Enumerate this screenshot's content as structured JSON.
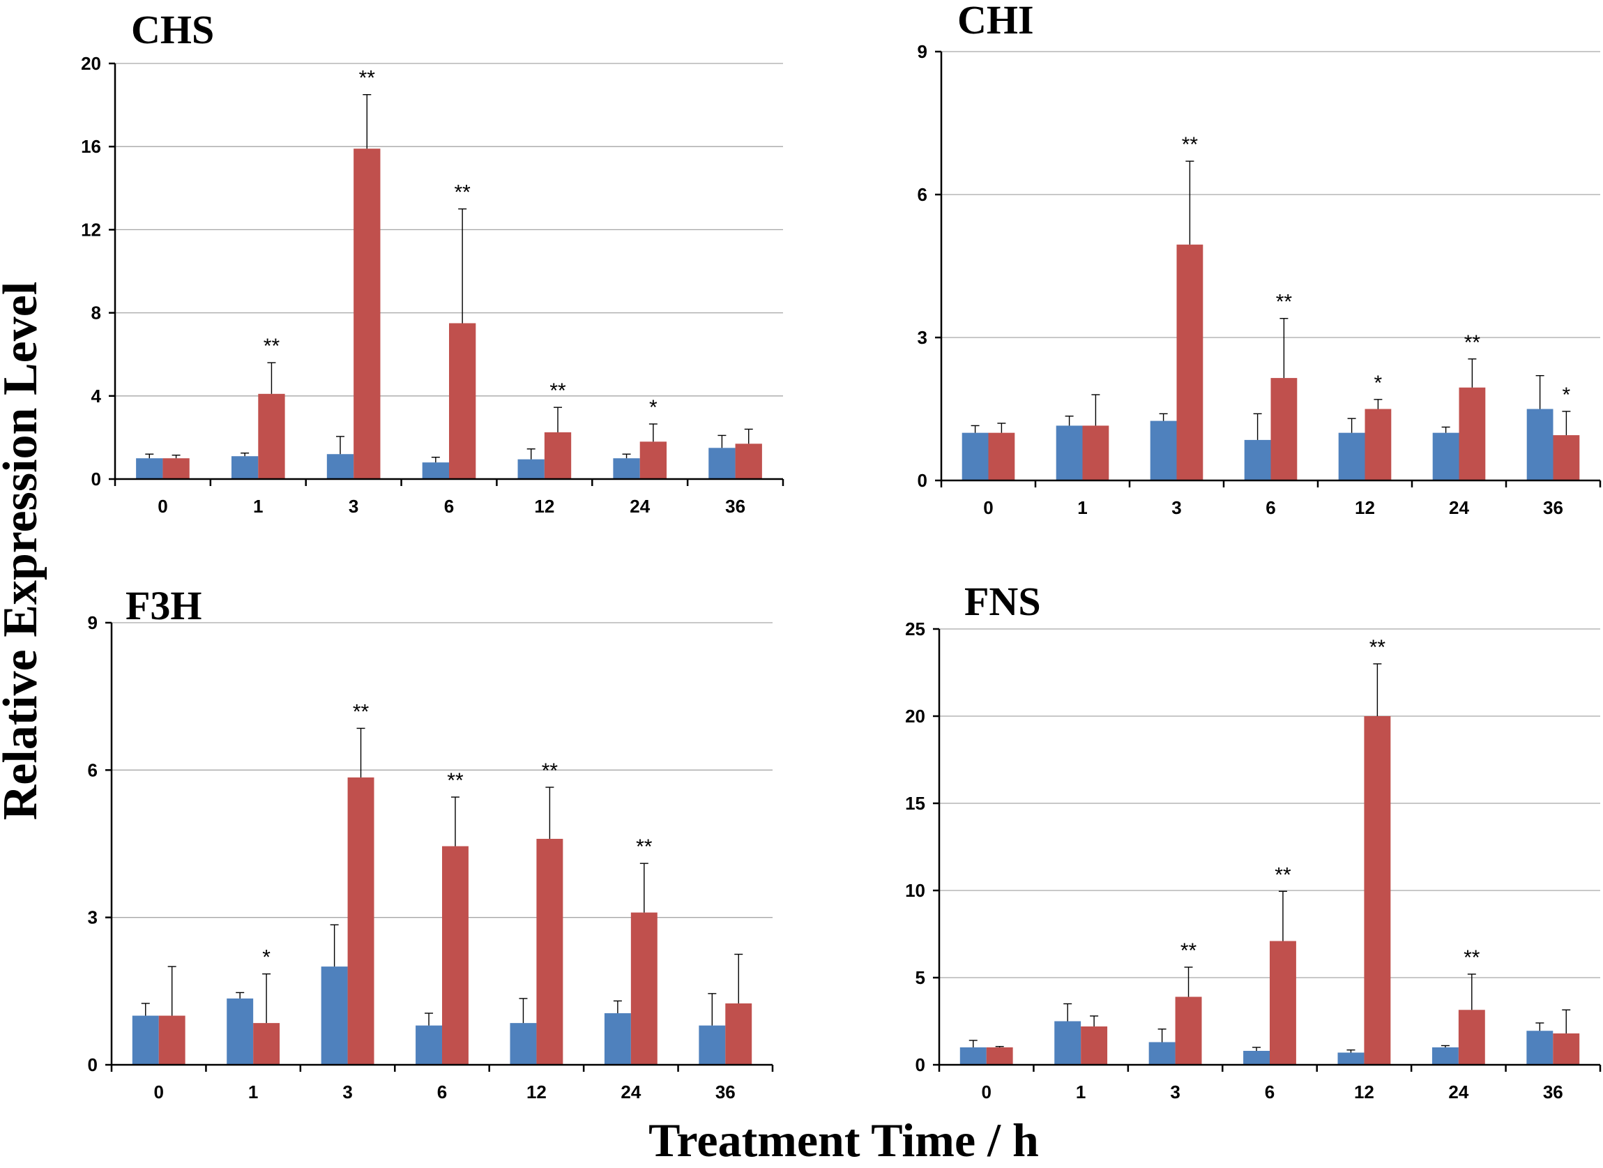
{
  "figure": {
    "ylabel": "Relative Expression Level",
    "xlabel": "Treatment Time / h"
  },
  "colors": {
    "series_a": "#4f81bd",
    "series_b": "#c0504d"
  },
  "chart_data": [
    {
      "type": "bar",
      "title": "CHS",
      "categories": [
        "0",
        "1",
        "3",
        "6",
        "12",
        "24",
        "36"
      ],
      "ylim": [
        0,
        20
      ],
      "yticks": [
        0,
        4,
        8,
        12,
        16,
        20
      ],
      "grid": true,
      "series": [
        {
          "name": "series_a",
          "values": [
            1.0,
            1.1,
            1.2,
            0.8,
            0.95,
            1.0,
            1.5
          ],
          "errors": [
            0.2,
            0.15,
            0.85,
            0.25,
            0.5,
            0.2,
            0.6
          ]
        },
        {
          "name": "series_b",
          "values": [
            1.0,
            4.1,
            15.9,
            7.5,
            2.25,
            1.8,
            1.7
          ],
          "errors": [
            0.15,
            1.5,
            2.6,
            5.5,
            1.2,
            0.85,
            0.7
          ]
        }
      ],
      "annotations": [
        "",
        "**",
        "**",
        "**",
        "**",
        "*",
        ""
      ]
    },
    {
      "type": "bar",
      "title": "CHI",
      "categories": [
        "0",
        "1",
        "3",
        "6",
        "12",
        "24",
        "36"
      ],
      "ylim": [
        0,
        9
      ],
      "yticks": [
        0,
        3,
        6,
        9
      ],
      "grid": true,
      "series": [
        {
          "name": "series_a",
          "values": [
            1.0,
            1.15,
            1.25,
            0.85,
            1.0,
            1.0,
            1.5
          ],
          "errors": [
            0.15,
            0.2,
            0.15,
            0.55,
            0.3,
            0.12,
            0.7
          ]
        },
        {
          "name": "series_b",
          "values": [
            1.0,
            1.15,
            4.95,
            2.15,
            1.5,
            1.95,
            0.95
          ],
          "errors": [
            0.2,
            0.65,
            1.75,
            1.25,
            0.2,
            0.6,
            0.5
          ]
        }
      ],
      "annotations": [
        "",
        "",
        "**",
        "**",
        "*",
        "**",
        "*"
      ]
    },
    {
      "type": "bar",
      "title": "F3H",
      "categories": [
        "0",
        "1",
        "3",
        "6",
        "12",
        "24",
        "36"
      ],
      "ylim": [
        0,
        9
      ],
      "yticks": [
        0,
        3,
        6,
        9
      ],
      "grid": true,
      "series": [
        {
          "name": "series_a",
          "values": [
            1.0,
            1.35,
            2.0,
            0.8,
            0.85,
            1.05,
            0.8
          ],
          "errors": [
            0.25,
            0.12,
            0.85,
            0.25,
            0.5,
            0.25,
            0.65
          ]
        },
        {
          "name": "series_b",
          "values": [
            1.0,
            0.85,
            5.85,
            4.45,
            4.6,
            3.1,
            1.25
          ],
          "errors": [
            1.0,
            1.0,
            1.0,
            1.0,
            1.05,
            1.0,
            1.0
          ]
        }
      ],
      "annotations": [
        "",
        "*",
        "**",
        "**",
        "**",
        "**",
        ""
      ]
    },
    {
      "type": "bar",
      "title": "FNS",
      "categories": [
        "0",
        "1",
        "3",
        "6",
        "12",
        "24",
        "36"
      ],
      "ylim": [
        0,
        25
      ],
      "yticks": [
        0,
        5,
        10,
        15,
        20,
        25
      ],
      "grid": true,
      "series": [
        {
          "name": "series_a",
          "values": [
            1.0,
            2.5,
            1.3,
            0.8,
            0.7,
            1.0,
            1.95
          ],
          "errors": [
            0.4,
            1.0,
            0.75,
            0.2,
            0.15,
            0.1,
            0.45
          ]
        },
        {
          "name": "series_b",
          "values": [
            1.0,
            2.2,
            3.9,
            7.1,
            20.0,
            3.15,
            1.8
          ],
          "errors": [
            0.05,
            0.6,
            1.7,
            2.85,
            3.0,
            2.05,
            1.35
          ]
        }
      ],
      "annotations": [
        "",
        "",
        "**",
        "**",
        "**",
        "**",
        ""
      ]
    }
  ]
}
